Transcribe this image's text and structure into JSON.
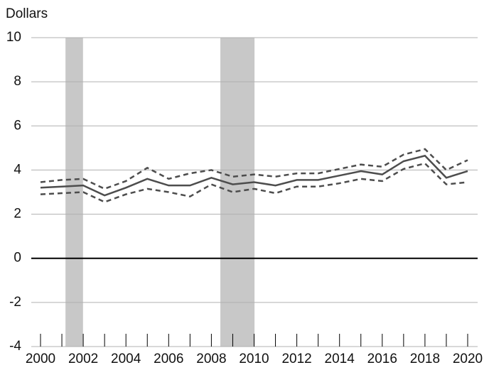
{
  "chart_data": {
    "type": "line",
    "y_label": "Dollars",
    "x": [
      2000,
      2001,
      2002,
      2003,
      2004,
      2005,
      2006,
      2007,
      2008,
      2009,
      2010,
      2011,
      2012,
      2013,
      2014,
      2015,
      2016,
      2017,
      2018,
      2019,
      2020
    ],
    "series": [
      {
        "color": "#4d4d4d",
        "dash": false,
        "values": [
          3.2,
          3.25,
          3.3,
          2.85,
          3.2,
          3.6,
          3.3,
          3.3,
          3.65,
          3.35,
          3.45,
          3.3,
          3.55,
          3.55,
          3.75,
          3.95,
          3.8,
          4.4,
          4.65,
          3.65,
          3.95
        ]
      },
      {
        "color": "#4d4d4d",
        "dash": true,
        "values": [
          3.45,
          3.55,
          3.6,
          3.15,
          3.5,
          4.1,
          3.6,
          3.85,
          4.0,
          3.7,
          3.8,
          3.7,
          3.85,
          3.85,
          4.05,
          4.25,
          4.15,
          4.7,
          4.95,
          4.0,
          4.45
        ]
      },
      {
        "color": "#4d4d4d",
        "dash": true,
        "values": [
          2.9,
          2.95,
          3.0,
          2.55,
          2.9,
          3.15,
          3.0,
          2.8,
          3.35,
          3.0,
          3.15,
          2.95,
          3.25,
          3.25,
          3.4,
          3.6,
          3.5,
          4.05,
          4.3,
          3.35,
          3.45
        ]
      }
    ],
    "shaded_ranges": [
      [
        2001.17,
        2001.99
      ],
      [
        2008.42,
        2010.02
      ]
    ],
    "shade_color": "#c8c8c8",
    "xlim": [
      2000,
      2020
    ],
    "xticks": [
      2000,
      2002,
      2004,
      2006,
      2008,
      2010,
      2012,
      2014,
      2016,
      2018,
      2020
    ],
    "xminorticks": [
      2001,
      2003,
      2005,
      2007,
      2009,
      2011,
      2013,
      2015,
      2017,
      2019
    ],
    "ylim": [
      -4,
      10
    ],
    "yticks": [
      -4,
      -2,
      0,
      2,
      4,
      6,
      8,
      10
    ],
    "grid": true,
    "zero_line": true
  }
}
